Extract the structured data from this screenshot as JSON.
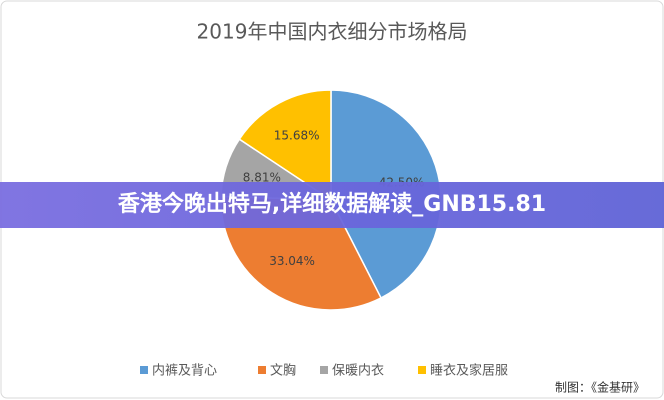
{
  "chart_data": {
    "type": "pie",
    "title": "2019年中国内衣细分市场格局",
    "categories": [
      "内裤及背心",
      "文胸",
      "保暖内衣",
      "睡衣及家居服"
    ],
    "values": [
      42.5,
      33.04,
      8.81,
      15.68
    ],
    "value_labels": [
      "42.50%",
      "33.04%",
      "8.81%",
      "15.68%"
    ],
    "colors": [
      "#5b9bd5",
      "#ed7d31",
      "#a5a5a5",
      "#ffc000"
    ],
    "legend": "bottom"
  },
  "overlay_banner": "香港今晚出特马,详细数据解读_GNB15.81",
  "credit": "制图：《金基研》"
}
